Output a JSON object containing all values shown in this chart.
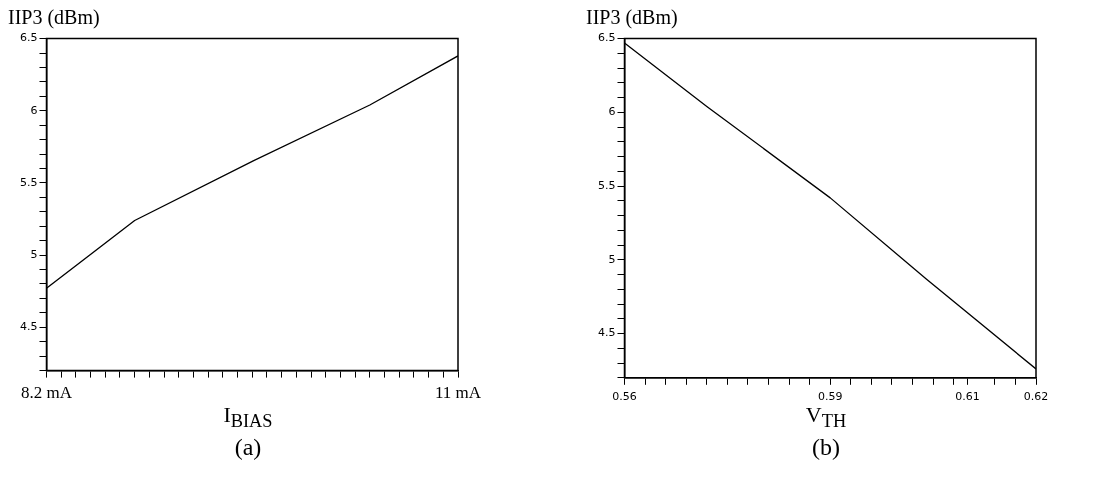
{
  "chart_data": [
    {
      "type": "line",
      "ylabel": "IIP3 (dBm)",
      "xlabel": "I$_{BIAS}$",
      "annotations": [
        "(a)"
      ],
      "x": [
        8.2,
        8.8,
        9.6,
        10.4,
        11
      ],
      "series": [
        {
          "color": "#000000",
          "values": [
            4.77,
            5.24,
            5.65,
            6.04,
            6.38
          ]
        }
      ],
      "xlim": [
        8.2,
        11
      ],
      "xticks": [
        {
          "value": 8.2,
          "label": "8.2 mA"
        },
        {
          "value": 8.3,
          "label": null
        },
        {
          "value": 8.4,
          "label": null
        },
        {
          "value": 8.5,
          "label": null
        },
        {
          "value": 8.6,
          "label": null
        },
        {
          "value": 8.7,
          "label": null
        },
        {
          "value": 8.8,
          "label": null
        },
        {
          "value": 8.9,
          "label": null
        },
        {
          "value": 9.0,
          "label": null
        },
        {
          "value": 9.1,
          "label": null
        },
        {
          "value": 9.2,
          "label": null
        },
        {
          "value": 9.3,
          "label": null
        },
        {
          "value": 9.4,
          "label": null
        },
        {
          "value": 9.5,
          "label": null
        },
        {
          "value": 9.6,
          "label": null
        },
        {
          "value": 9.7,
          "label": null
        },
        {
          "value": 9.8,
          "label": null
        },
        {
          "value": 9.9,
          "label": null
        },
        {
          "value": 10.0,
          "label": null
        },
        {
          "value": 10.1,
          "label": null
        },
        {
          "value": 10.2,
          "label": null
        },
        {
          "value": 10.3,
          "label": null
        },
        {
          "value": 10.4,
          "label": null
        },
        {
          "value": 10.5,
          "label": null
        },
        {
          "value": 10.6,
          "label": null
        },
        {
          "value": 10.7,
          "label": null
        },
        {
          "value": 10.8,
          "label": null
        },
        {
          "value": 10.9,
          "label": null
        },
        {
          "value": 11,
          "label": "11 mA"
        }
      ],
      "ylim": [
        4.2,
        6.5
      ],
      "yticks": [
        {
          "value": 4.2,
          "label": null
        },
        {
          "value": 4.3,
          "label": null
        },
        {
          "value": 4.4,
          "label": null
        },
        4.5,
        {
          "value": 4.6,
          "label": null
        },
        {
          "value": 4.7,
          "label": null
        },
        {
          "value": 4.8,
          "label": null
        },
        {
          "value": 4.9,
          "label": null
        },
        5,
        {
          "value": 5.1,
          "label": null
        },
        {
          "value": 5.2,
          "label": null
        },
        {
          "value": 5.3,
          "label": null
        },
        {
          "value": 5.4,
          "label": null
        },
        5.5,
        {
          "value": 5.6,
          "label": null
        },
        {
          "value": 5.7,
          "label": null
        },
        {
          "value": 5.8,
          "label": null
        },
        {
          "value": 5.9,
          "label": null
        },
        6,
        {
          "value": 6.1,
          "label": null
        },
        {
          "value": 6.2,
          "label": null
        },
        {
          "value": 6.3,
          "label": null
        },
        {
          "value": 6.4,
          "label": null
        },
        6.5
      ],
      "grid": false,
      "legend": false,
      "marker": "none",
      "line_style": "solid"
    },
    {
      "type": "line",
      "ylabel": "IIP3 (dBm)",
      "xlabel": "V$_{TH}$",
      "annotations": [
        "(b)"
      ],
      "x": [
        0.56,
        0.572,
        0.59,
        0.604,
        0.62
      ],
      "series": [
        {
          "color": "#000000",
          "values": [
            6.47,
            6.04,
            5.42,
            4.87,
            4.26
          ]
        }
      ],
      "xlim": [
        0.56,
        0.62
      ],
      "xticks": [
        0.56,
        {
          "value": 0.563,
          "label": null
        },
        {
          "value": 0.566,
          "label": null
        },
        {
          "value": 0.569,
          "label": null
        },
        {
          "value": 0.572,
          "label": null
        },
        {
          "value": 0.575,
          "label": null
        },
        {
          "value": 0.578,
          "label": null
        },
        {
          "value": 0.581,
          "label": null
        },
        {
          "value": 0.584,
          "label": null
        },
        {
          "value": 0.587,
          "label": null
        },
        0.59,
        {
          "value": 0.593,
          "label": null
        },
        {
          "value": 0.596,
          "label": null
        },
        {
          "value": 0.599,
          "label": null
        },
        {
          "value": 0.602,
          "label": null
        },
        {
          "value": 0.605,
          "label": null
        },
        {
          "value": 0.608,
          "label": null
        },
        0.61,
        {
          "value": 0.614,
          "label": null
        },
        {
          "value": 0.617,
          "label": null
        },
        0.62
      ],
      "ylim": [
        4.2,
        6.5
      ],
      "yticks": [
        {
          "value": 4.2,
          "label": null
        },
        {
          "value": 4.3,
          "label": null
        },
        {
          "value": 4.4,
          "label": null
        },
        4.5,
        {
          "value": 4.6,
          "label": null
        },
        {
          "value": 4.7,
          "label": null
        },
        {
          "value": 4.8,
          "label": null
        },
        {
          "value": 4.9,
          "label": null
        },
        5,
        {
          "value": 5.1,
          "label": null
        },
        {
          "value": 5.2,
          "label": null
        },
        {
          "value": 5.3,
          "label": null
        },
        {
          "value": 5.4,
          "label": null
        },
        5.5,
        {
          "value": 5.6,
          "label": null
        },
        {
          "value": 5.7,
          "label": null
        },
        {
          "value": 5.8,
          "label": null
        },
        {
          "value": 5.9,
          "label": null
        },
        6,
        {
          "value": 6.1,
          "label": null
        },
        {
          "value": 6.2,
          "label": null
        },
        {
          "value": 6.3,
          "label": null
        },
        {
          "value": 6.4,
          "label": null
        },
        6.5
      ],
      "grid": false,
      "legend": false,
      "marker": "none",
      "line_style": "solid"
    }
  ]
}
